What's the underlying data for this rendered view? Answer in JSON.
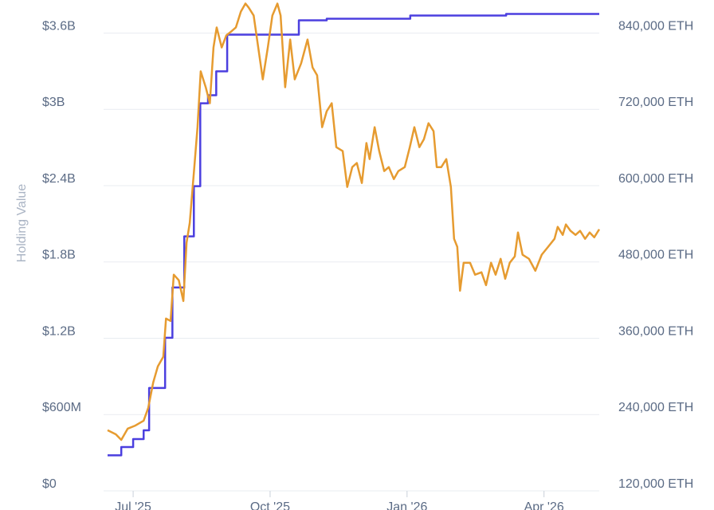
{
  "chart_data": {
    "type": "line",
    "y_label": "Holding Value",
    "xlim": [
      -0.56,
      10.21
    ],
    "ylim": [
      0,
      3860000000
    ],
    "y2lim": [
      120000,
      892000
    ],
    "grid": true,
    "xticks": [
      {
        "value": 0,
        "label": "Jul '25"
      },
      {
        "value": 3,
        "label": "Oct '25"
      },
      {
        "value": 6,
        "label": "Jan '26"
      },
      {
        "value": 9,
        "label": "Apr '26"
      }
    ],
    "yticks": [
      {
        "value": 0,
        "label": "$0"
      },
      {
        "value": 600000000,
        "label": "$600M"
      },
      {
        "value": 1200000000,
        "label": "$1.2B"
      },
      {
        "value": 1800000000,
        "label": "$1.8B"
      },
      {
        "value": 2400000000,
        "label": "$2.4B"
      },
      {
        "value": 3000000000,
        "label": "$3B"
      },
      {
        "value": 3600000000,
        "label": "$3.6B"
      }
    ],
    "y2ticks": [
      {
        "value": 120000,
        "label": "120,000 ETH"
      },
      {
        "value": 240000,
        "label": "240,000 ETH"
      },
      {
        "value": 360000,
        "label": "360,000 ETH"
      },
      {
        "value": 480000,
        "label": "480,000 ETH"
      },
      {
        "value": 600000,
        "label": "600,000 ETH"
      },
      {
        "value": 720000,
        "label": "720,000 ETH"
      },
      {
        "value": 840000,
        "label": "840,000 ETH"
      }
    ],
    "series": [
      {
        "color": "#4b3fdf",
        "axis": "y2",
        "step": true,
        "x": [
          -0.56,
          -0.26,
          0,
          0.23,
          0.35,
          0.7,
          0.86,
          1.12,
          1.33,
          1.47,
          1.64,
          1.82,
          2.06,
          3.63,
          4.24,
          6.07,
          8.17,
          10.21
        ],
        "values": [
          176000,
          189000,
          201500,
          215300,
          281800,
          360800,
          439900,
          520200,
          599200,
          729600,
          742200,
          779800,
          837500,
          860100,
          862600,
          867600,
          870000,
          870000
        ]
      },
      {
        "color": "#e69b30",
        "axis": "y",
        "x": [
          -0.56,
          -0.38,
          -0.26,
          -0.12,
          0.05,
          0.23,
          0.33,
          0.44,
          0.54,
          0.66,
          0.72,
          0.82,
          0.89,
          1.0,
          1.1,
          1.17,
          1.24,
          1.34,
          1.41,
          1.48,
          1.59,
          1.68,
          1.76,
          1.83,
          1.94,
          2.04,
          2.15,
          2.25,
          2.36,
          2.46,
          2.53,
          2.64,
          2.74,
          2.84,
          2.95,
          3.05,
          3.16,
          3.23,
          3.33,
          3.44,
          3.54,
          3.68,
          3.82,
          3.93,
          4.03,
          4.14,
          4.24,
          4.35,
          4.45,
          4.59,
          4.69,
          4.8,
          4.9,
          5.01,
          5.11,
          5.18,
          5.29,
          5.39,
          5.5,
          5.6,
          5.71,
          5.81,
          5.95,
          6.06,
          6.16,
          6.27,
          6.37,
          6.47,
          6.58,
          6.65,
          6.75,
          6.86,
          6.96,
          7.03,
          7.1,
          7.16,
          7.24,
          7.38,
          7.49,
          7.63,
          7.73,
          7.84,
          7.94,
          8.05,
          8.15,
          8.25,
          8.36,
          8.43,
          8.53,
          8.67,
          8.81,
          8.95,
          9.09,
          9.23,
          9.3,
          9.41,
          9.48,
          9.58,
          9.69,
          9.79,
          9.9,
          10.0,
          10.1,
          10.21
        ],
        "values": [
          477000000,
          445000000,
          401000000,
          489000000,
          514000000,
          552000000,
          652000000,
          853000000,
          978000000,
          1054000000,
          1355000000,
          1336000000,
          1700000000,
          1656000000,
          1493000000,
          1951000000,
          2107000000,
          2546000000,
          2860000000,
          3299000000,
          3174000000,
          3048000000,
          3487000000,
          3644000000,
          3487000000,
          3581000000,
          3613000000,
          3644000000,
          3769000000,
          3832000000,
          3801000000,
          3738000000,
          3487000000,
          3236000000,
          3487000000,
          3738000000,
          3832000000,
          3738000000,
          3174000000,
          3549000000,
          3236000000,
          3362000000,
          3549000000,
          3330000000,
          3268000000,
          2860000000,
          2985000000,
          3048000000,
          2703000000,
          2672000000,
          2390000000,
          2546000000,
          2578000000,
          2421000000,
          2735000000,
          2609000000,
          2860000000,
          2672000000,
          2515000000,
          2546000000,
          2452000000,
          2515000000,
          2546000000,
          2703000000,
          2860000000,
          2703000000,
          2766000000,
          2891000000,
          2829000000,
          2546000000,
          2546000000,
          2609000000,
          2390000000,
          1982000000,
          1919000000,
          1574000000,
          1794000000,
          1794000000,
          1700000000,
          1719000000,
          1618000000,
          1794000000,
          1700000000,
          1825000000,
          1668000000,
          1794000000,
          1844000000,
          2032000000,
          1857000000,
          1825000000,
          1731000000,
          1857000000,
          1919000000,
          1982000000,
          2076000000,
          2013000000,
          2095000000,
          2045000000,
          2013000000,
          2045000000,
          1982000000,
          2032000000,
          1994000000,
          2057000000
        ]
      }
    ]
  }
}
